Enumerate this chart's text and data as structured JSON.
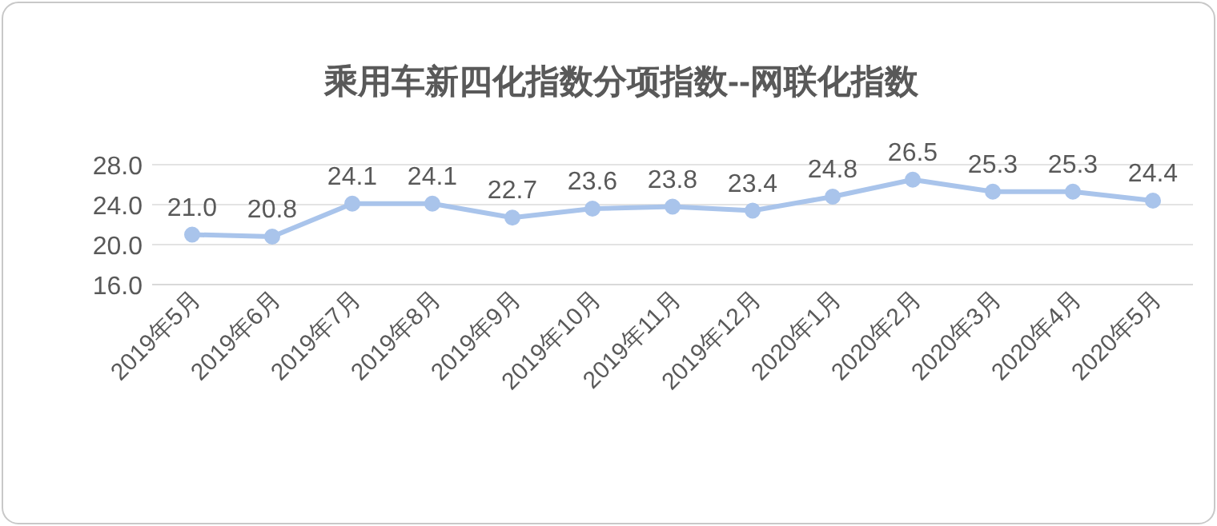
{
  "chart_data": {
    "type": "line",
    "title": "乘用车新四化指数分项指数--网联化指数",
    "categories": [
      "2019年5月",
      "2019年6月",
      "2019年7月",
      "2019年8月",
      "2019年9月",
      "2019年10月",
      "2019年11月",
      "2019年12月",
      "2020年1月",
      "2020年2月",
      "2020年3月",
      "2020年4月",
      "2020年5月"
    ],
    "series": [
      {
        "color": "#a9c4eb",
        "values": [
          21.0,
          20.8,
          24.1,
          24.1,
          22.7,
          23.6,
          23.8,
          23.4,
          24.8,
          26.5,
          25.3,
          25.3,
          24.4
        ],
        "value_labels": [
          "21.0",
          "20.8",
          "24.1",
          "24.1",
          "22.7",
          "23.6",
          "23.8",
          "23.4",
          "24.8",
          "26.5",
          "25.3",
          "25.3",
          "24.4"
        ]
      }
    ],
    "ylim": [
      16,
      28
    ],
    "yticks": [
      {
        "value": 16,
        "label": "16.0"
      },
      {
        "value": 20,
        "label": "20.0"
      },
      {
        "value": 24,
        "label": "24.0"
      },
      {
        "value": 28,
        "label": "28.0"
      }
    ],
    "grid": "y",
    "marker": "circle",
    "line_style": "solid"
  }
}
